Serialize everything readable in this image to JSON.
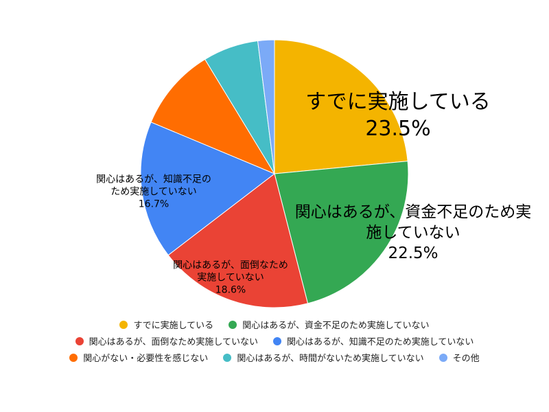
{
  "chart_data": {
    "type": "pie",
    "categories": [
      "すでに実施している",
      "関心はあるが、資金不足のため実施していない",
      "関心はあるが、面倒なため実施していない",
      "関心はあるが、知識不足のため実施していない",
      "関心がない・必要性を感じない",
      "関心はあるが、時間がないため実施していない",
      "その他"
    ],
    "values": [
      23.5,
      22.5,
      18.6,
      16.7,
      10.0,
      6.7,
      2.0
    ],
    "value_labels": [
      "23.5%",
      "22.5%",
      "18.6%",
      "16.7%",
      null,
      null,
      null
    ],
    "colors": [
      "#f4b400",
      "#34a853",
      "#ea4335",
      "#4285f4",
      "#ff6d01",
      "#46bdc6",
      "#7baaf7"
    ]
  }
}
